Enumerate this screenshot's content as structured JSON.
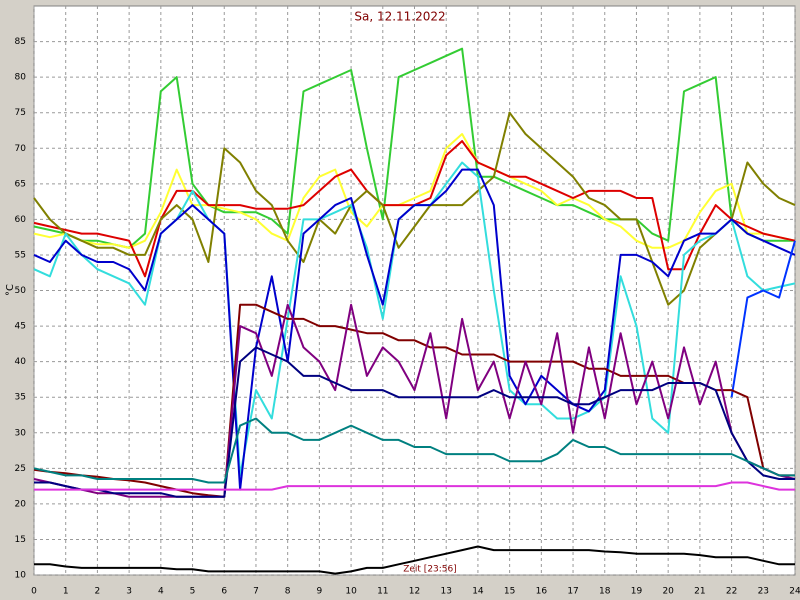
{
  "chart_data": {
    "type": "line",
    "title": "Sa, 12.11.2022",
    "y_label": "°C",
    "annotation": "Zeit [23:56]",
    "xlim": [
      0,
      24
    ],
    "ylim": [
      10,
      90
    ],
    "xticks": [
      0,
      1,
      2,
      3,
      4,
      5,
      6,
      7,
      8,
      9,
      10,
      11,
      12,
      13,
      14,
      15,
      16,
      17,
      18,
      19,
      20,
      21,
      22,
      23,
      24
    ],
    "yticks": [
      10,
      15,
      20,
      25,
      30,
      35,
      40,
      45,
      50,
      55,
      60,
      65,
      70,
      75,
      80,
      85
    ],
    "grid": true,
    "x": [
      0,
      0.5,
      1,
      1.5,
      2,
      2.5,
      3,
      3.5,
      4,
      4.5,
      5,
      5.5,
      6,
      6.5,
      7,
      7.5,
      8,
      8.5,
      9,
      9.5,
      10,
      10.5,
      11,
      11.5,
      12,
      12.5,
      13,
      13.5,
      14,
      14.5,
      15,
      15.5,
      16,
      16.5,
      17,
      17.5,
      18,
      18.5,
      19,
      19.5,
      20,
      20.5,
      21,
      21.5,
      22,
      22.5,
      23,
      23.5,
      24
    ],
    "series": [
      {
        "color": "#33cc33",
        "values": [
          59,
          58.5,
          58,
          57,
          57,
          56.5,
          56,
          58,
          78,
          80,
          65,
          62,
          61,
          61,
          61,
          60,
          58,
          78,
          79,
          80,
          81,
          70,
          60,
          80,
          81,
          82,
          83,
          84,
          66,
          66,
          65,
          64,
          63,
          62,
          62,
          61,
          60,
          60,
          60,
          58,
          57,
          78,
          79,
          80,
          60,
          58,
          57,
          57,
          57
        ]
      },
      {
        "color": "#ffff33",
        "values": [
          58,
          57.5,
          58,
          57,
          56.5,
          56.5,
          56,
          57,
          61,
          67,
          62,
          62,
          61.5,
          61,
          60,
          58,
          57,
          63,
          66,
          67,
          61,
          59,
          62,
          62,
          63,
          64,
          70,
          72,
          68,
          67,
          66,
          65,
          64,
          62,
          63,
          62,
          60,
          59,
          57,
          56,
          56,
          57,
          61,
          64,
          65,
          58,
          58,
          57.5,
          57
        ]
      },
      {
        "color": "#dd0000",
        "values": [
          59.5,
          59,
          58.5,
          58,
          58,
          57.5,
          57,
          52,
          60,
          64,
          64,
          62,
          62,
          62,
          61.5,
          61.5,
          61.5,
          62,
          64,
          66,
          67,
          64,
          62,
          62,
          62,
          63,
          69,
          71,
          68,
          67,
          66,
          66,
          65,
          64,
          63,
          64,
          64,
          64,
          63,
          63,
          53,
          53,
          58,
          62,
          60,
          59,
          58,
          57.5,
          57
        ]
      },
      {
        "color": "#808000",
        "values": [
          63,
          60,
          58,
          57,
          56,
          56,
          55,
          55,
          60,
          62,
          60,
          54,
          70,
          68,
          64,
          62,
          57,
          54,
          60,
          58,
          62,
          64,
          62,
          56,
          59,
          62,
          62,
          62,
          64,
          66,
          75,
          72,
          70,
          68,
          66,
          63,
          62,
          60,
          60,
          54,
          48,
          50,
          56,
          58,
          60,
          68,
          65,
          63,
          62
        ]
      },
      {
        "color": "#33dddd",
        "values": [
          53,
          52,
          58,
          55,
          53,
          52,
          51,
          48,
          58,
          60,
          64,
          60,
          58,
          24,
          36,
          32,
          46,
          60,
          60,
          61,
          62,
          56,
          46,
          60,
          62,
          62,
          65,
          68,
          66,
          50,
          36,
          34,
          34,
          32,
          32,
          33,
          35,
          52,
          45,
          32,
          30,
          55,
          57,
          58,
          60,
          52,
          50,
          50.5,
          51
        ]
      },
      {
        "color": "#0000cc",
        "values": [
          55,
          54,
          57,
          55,
          54,
          54,
          53,
          50,
          58,
          60,
          62,
          60,
          58,
          22,
          42,
          52,
          40,
          58,
          60,
          62,
          63,
          55,
          48,
          60,
          62,
          62,
          64,
          67,
          67,
          62,
          38,
          34,
          38,
          36,
          34,
          33,
          36,
          55,
          55,
          54,
          52,
          57,
          58,
          58,
          60,
          58,
          57,
          56,
          55
        ]
      },
      {
        "color": "#0033ff",
        "values": [
          null,
          null,
          null,
          null,
          null,
          null,
          null,
          null,
          null,
          null,
          null,
          null,
          null,
          null,
          null,
          null,
          null,
          null,
          null,
          null,
          null,
          null,
          null,
          null,
          null,
          null,
          null,
          null,
          null,
          null,
          null,
          null,
          null,
          null,
          null,
          null,
          null,
          null,
          null,
          null,
          null,
          null,
          null,
          null,
          35,
          49,
          50,
          49,
          57
        ]
      },
      {
        "color": "#800000",
        "values": [
          24.8,
          24.5,
          24.3,
          24,
          23.8,
          23.5,
          23.3,
          23,
          22.5,
          22,
          21.5,
          21.2,
          21,
          48,
          48,
          47,
          46,
          46,
          45,
          45,
          44.5,
          44,
          44,
          43,
          43,
          42,
          42,
          41,
          41,
          41,
          40,
          40,
          40,
          40,
          40,
          39,
          39,
          38,
          38,
          38,
          38,
          37,
          37,
          36,
          36,
          35,
          25,
          24,
          24
        ]
      },
      {
        "color": "#800080",
        "values": [
          23.5,
          23,
          22.5,
          22,
          21.5,
          21.5,
          21,
          21,
          21,
          21,
          21,
          21,
          21,
          45,
          44,
          38,
          48,
          42,
          40,
          36,
          48,
          38,
          42,
          40,
          36,
          44,
          32,
          46,
          36,
          40,
          32,
          40,
          34,
          44,
          30,
          42,
          32,
          44,
          34,
          40,
          32,
          42,
          34,
          40,
          30,
          26,
          25,
          24,
          23.5
        ]
      },
      {
        "color": "#000080",
        "values": [
          23,
          23,
          22.5,
          22,
          22,
          21.5,
          21.5,
          21.5,
          21.5,
          21,
          21,
          21,
          21,
          40,
          42,
          41,
          40,
          38,
          38,
          37,
          36,
          36,
          36,
          35,
          35,
          35,
          35,
          35,
          35,
          36,
          35,
          35,
          35,
          35,
          34,
          34,
          35,
          36,
          36,
          36,
          37,
          37,
          37,
          36,
          30,
          26,
          24,
          23.5,
          23.5
        ]
      },
      {
        "color": "#008080",
        "values": [
          25,
          24.5,
          24,
          24,
          23.5,
          23.5,
          23.5,
          23.5,
          23.5,
          23.5,
          23.5,
          23,
          23,
          31,
          32,
          30,
          30,
          29,
          29,
          30,
          31,
          30,
          29,
          29,
          28,
          28,
          27,
          27,
          27,
          27,
          26,
          26,
          26,
          27,
          29,
          28,
          28,
          27,
          27,
          27,
          27,
          27,
          27,
          27,
          27,
          26,
          25,
          24,
          24
        ]
      },
      {
        "color": "#dd33dd",
        "values": [
          22,
          22,
          22,
          22,
          22,
          22,
          22,
          22,
          22,
          22,
          22,
          22,
          22,
          22,
          22,
          22,
          22.5,
          22.5,
          22.5,
          22.5,
          22.5,
          22.5,
          22.5,
          22.5,
          22.5,
          22.5,
          22.5,
          22.5,
          22.5,
          22.5,
          22.5,
          22.5,
          22.5,
          22.5,
          22.5,
          22.5,
          22.5,
          22.5,
          22.5,
          22.5,
          22.5,
          22.5,
          22.5,
          22.5,
          23,
          23,
          22.5,
          22,
          22
        ]
      },
      {
        "color": "#000000",
        "values": [
          11.5,
          11.5,
          11.2,
          11,
          11,
          11,
          11,
          11,
          11,
          10.8,
          10.8,
          10.5,
          10.5,
          10.5,
          10.5,
          10.5,
          10.5,
          10.5,
          10.5,
          10.2,
          10.5,
          11,
          11,
          11.5,
          12,
          12.5,
          13,
          13.5,
          14,
          13.5,
          13.5,
          13.5,
          13.5,
          13.5,
          13.5,
          13.5,
          13.3,
          13.2,
          13,
          13,
          13,
          13,
          12.8,
          12.5,
          12.5,
          12.5,
          12,
          11.5,
          11.5
        ]
      }
    ]
  }
}
